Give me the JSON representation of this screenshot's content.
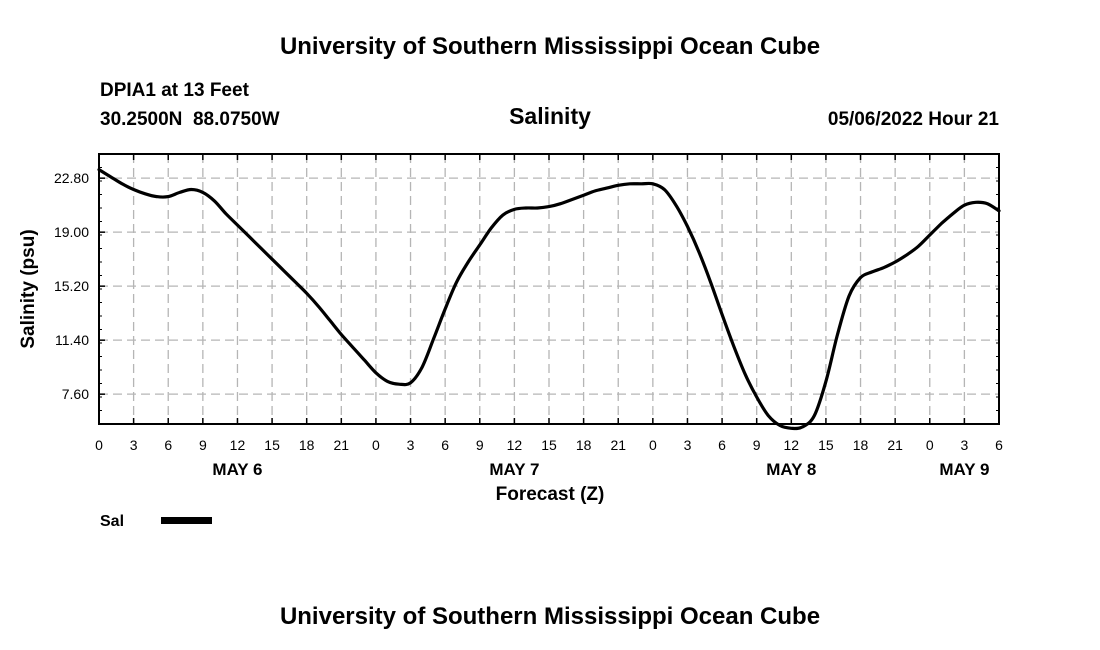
{
  "header": {
    "title": "University of Southern Mississippi Ocean Cube",
    "station": "DPIA1 at 13 Feet",
    "coords": "30.2500N  88.0750W",
    "chart_title": "Salinity",
    "datetime": "05/06/2022 Hour 21"
  },
  "footer": {
    "title": "University of Southern Mississippi Ocean Cube"
  },
  "legend": {
    "label": "Sal"
  },
  "chart_data": {
    "type": "line",
    "title": "Salinity",
    "xlabel": "Forecast (Z)",
    "ylabel": "Salinity (psu)",
    "xlim": [
      0,
      78
    ],
    "ylim": [
      5.5,
      24.5
    ],
    "yticks": [
      7.6,
      11.4,
      15.2,
      19.0,
      22.8
    ],
    "ytick_labels": [
      "7.60",
      "11.40",
      "15.20",
      "19.00",
      "22.80"
    ],
    "xticks": [
      0,
      3,
      6,
      9,
      12,
      15,
      18,
      21,
      24,
      27,
      30,
      33,
      36,
      39,
      42,
      45,
      48,
      51,
      54,
      57,
      60,
      63,
      66,
      69,
      72,
      75,
      78
    ],
    "xtick_labels": [
      "0",
      "3",
      "6",
      "9",
      "12",
      "15",
      "18",
      "21",
      "0",
      "3",
      "6",
      "9",
      "12",
      "15",
      "18",
      "21",
      "0",
      "3",
      "6",
      "9",
      "12",
      "15",
      "18",
      "21",
      "0",
      "3",
      "6"
    ],
    "date_labels": [
      {
        "label": "MAY 6",
        "x": 12
      },
      {
        "label": "MAY 7",
        "x": 36
      },
      {
        "label": "MAY 8",
        "x": 60
      },
      {
        "label": "MAY 9",
        "x": 75
      }
    ],
    "grid": true,
    "legend_position": "bottom-left",
    "series": [
      {
        "name": "Sal",
        "x": [
          0,
          1,
          2,
          3,
          4,
          5,
          6,
          7,
          8,
          9,
          10,
          11,
          12,
          13,
          14,
          15,
          16,
          17,
          18,
          19,
          20,
          21,
          22,
          23,
          24,
          25,
          26,
          27,
          28,
          29,
          30,
          31,
          32,
          33,
          34,
          35,
          36,
          37,
          38,
          39,
          40,
          41,
          42,
          43,
          44,
          45,
          46,
          47,
          48,
          49,
          50,
          51,
          52,
          53,
          54,
          55,
          56,
          57,
          58,
          59,
          60,
          61,
          62,
          63,
          64,
          65,
          66,
          67,
          68,
          69,
          70,
          71,
          72,
          73,
          74,
          75,
          76,
          77,
          78
        ],
        "values": [
          23.4,
          22.9,
          22.4,
          22.0,
          21.7,
          21.5,
          21.5,
          21.8,
          22.0,
          21.8,
          21.2,
          20.3,
          19.5,
          18.7,
          17.9,
          17.1,
          16.3,
          15.5,
          14.7,
          13.8,
          12.8,
          11.8,
          10.9,
          10.0,
          9.1,
          8.5,
          8.3,
          8.4,
          9.5,
          11.5,
          13.6,
          15.5,
          16.9,
          18.1,
          19.3,
          20.2,
          20.6,
          20.7,
          20.7,
          20.8,
          21.0,
          21.3,
          21.6,
          21.9,
          22.1,
          22.3,
          22.4,
          22.4,
          22.4,
          22.0,
          20.9,
          19.4,
          17.6,
          15.5,
          13.2,
          11.0,
          9.0,
          7.4,
          6.1,
          5.4,
          5.2,
          5.3,
          6.1,
          8.5,
          11.8,
          14.5,
          15.8,
          16.2,
          16.5,
          16.9,
          17.4,
          18.0,
          18.8,
          19.6,
          20.3,
          20.9,
          21.1,
          21.0,
          20.5
        ]
      }
    ]
  }
}
